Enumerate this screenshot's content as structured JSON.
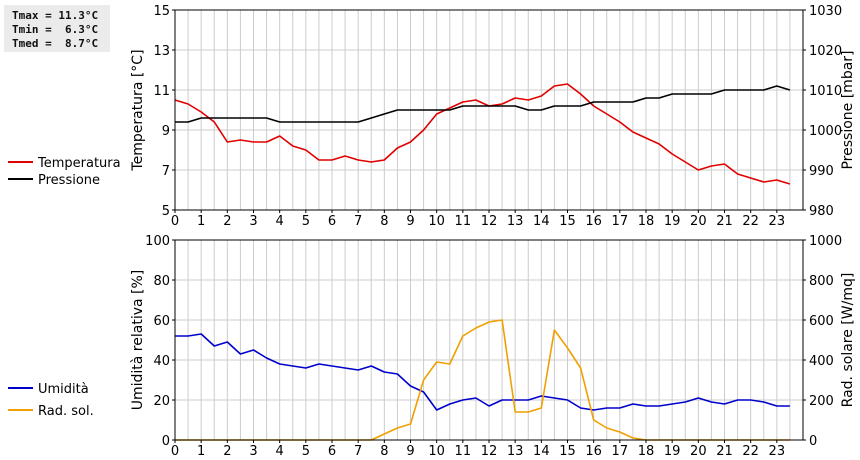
{
  "stats": {
    "tmax": "Tmax = 11.3°C",
    "tmin": "Tmin =  6.3°C",
    "tmed": "Tmed =  8.7°C"
  },
  "colors": {
    "temperature": "#e00000",
    "pressure": "#000000",
    "humidity": "#0000cc",
    "radiation": "#f0a000",
    "grid": "#cccccc"
  },
  "chart_data": [
    {
      "type": "line",
      "id": "top",
      "x_ticks": [
        "0",
        "1",
        "2",
        "3",
        "4",
        "5",
        "6",
        "7",
        "8",
        "9",
        "10",
        "11",
        "12",
        "13",
        "14",
        "15",
        "16",
        "17",
        "18",
        "19",
        "20",
        "21",
        "22",
        "23"
      ],
      "xlim": [
        0,
        24
      ],
      "ylabel_left": "Temperatura [°C]",
      "ylabel_right": "Pressione [mbar]",
      "ylim_left": [
        5,
        15
      ],
      "ylim_right": [
        980,
        1030
      ],
      "yticks_left": [
        "5",
        "7",
        "9",
        "11",
        "13",
        "15"
      ],
      "yticks_right": [
        "980",
        "990",
        "1000",
        "1010",
        "1020",
        "1030"
      ],
      "legend": [
        "Temperatura",
        "Pressione"
      ],
      "series": [
        {
          "name": "Temperatura",
          "axis": "left",
          "color_key": "temperature",
          "x": [
            0,
            0.5,
            1,
            1.5,
            2,
            2.5,
            3,
            3.5,
            4,
            4.5,
            5,
            5.5,
            6,
            6.5,
            7,
            7.5,
            8,
            8.5,
            9,
            9.5,
            10,
            10.5,
            11,
            11.5,
            12,
            12.5,
            13,
            13.5,
            14,
            14.5,
            15,
            15.5,
            16,
            16.5,
            17,
            17.5,
            18,
            18.5,
            19,
            19.5,
            20,
            20.5,
            21,
            21.5,
            22,
            22.5,
            23,
            23.5
          ],
          "values": [
            10.5,
            10.3,
            9.9,
            9.4,
            8.4,
            8.5,
            8.4,
            8.4,
            8.7,
            8.2,
            8.0,
            7.5,
            7.5,
            7.7,
            7.5,
            7.4,
            7.5,
            8.1,
            8.4,
            9.0,
            9.8,
            10.1,
            10.4,
            10.5,
            10.2,
            10.3,
            10.6,
            10.5,
            10.7,
            11.2,
            11.3,
            10.8,
            10.2,
            9.8,
            9.4,
            8.9,
            8.6,
            8.3,
            7.8,
            7.4,
            7.0,
            7.2,
            7.3,
            6.8,
            6.6,
            6.4,
            6.5,
            6.3
          ]
        },
        {
          "name": "Pressione",
          "axis": "right",
          "color_key": "pressure",
          "x": [
            0,
            0.5,
            1,
            1.5,
            2,
            2.5,
            3,
            3.5,
            4,
            4.5,
            5,
            5.5,
            6,
            6.5,
            7,
            7.5,
            8,
            8.5,
            9,
            9.5,
            10,
            10.5,
            11,
            11.5,
            12,
            12.5,
            13,
            13.5,
            14,
            14.5,
            15,
            15.5,
            16,
            16.5,
            17,
            17.5,
            18,
            18.5,
            19,
            19.5,
            20,
            20.5,
            21,
            21.5,
            22,
            22.5,
            23,
            23.5
          ],
          "values": [
            1002,
            1002,
            1003,
            1003,
            1003,
            1003,
            1003,
            1003,
            1002,
            1002,
            1002,
            1002,
            1002,
            1002,
            1002,
            1003,
            1004,
            1005,
            1005,
            1005,
            1005,
            1005,
            1006,
            1006,
            1006,
            1006,
            1006,
            1005,
            1005,
            1006,
            1006,
            1006,
            1007,
            1007,
            1007,
            1007,
            1008,
            1008,
            1009,
            1009,
            1009,
            1009,
            1010,
            1010,
            1010,
            1010,
            1011,
            1010
          ]
        }
      ]
    },
    {
      "type": "line",
      "id": "bottom",
      "x_ticks": [
        "0",
        "1",
        "2",
        "3",
        "4",
        "5",
        "6",
        "7",
        "8",
        "9",
        "10",
        "11",
        "12",
        "13",
        "14",
        "15",
        "16",
        "17",
        "18",
        "19",
        "20",
        "21",
        "22",
        "23"
      ],
      "xlim": [
        0,
        24
      ],
      "ylabel_left": "Umidità relativa [%]",
      "ylabel_right": "Rad. solare [W/mq]",
      "ylim_left": [
        0,
        100
      ],
      "ylim_right": [
        0,
        1000
      ],
      "yticks_left": [
        "0",
        "20",
        "40",
        "60",
        "80",
        "100"
      ],
      "yticks_right": [
        "0",
        "200",
        "400",
        "600",
        "800",
        "1000"
      ],
      "legend": [
        "Umidità",
        "Rad. sol."
      ],
      "series": [
        {
          "name": "Umidità",
          "axis": "left",
          "color_key": "humidity",
          "x": [
            0,
            0.5,
            1,
            1.5,
            2,
            2.5,
            3,
            3.5,
            4,
            4.5,
            5,
            5.5,
            6,
            6.5,
            7,
            7.5,
            8,
            8.5,
            9,
            9.5,
            10,
            10.5,
            11,
            11.5,
            12,
            12.5,
            13,
            13.5,
            14,
            14.5,
            15,
            15.5,
            16,
            16.5,
            17,
            17.5,
            18,
            18.5,
            19,
            19.5,
            20,
            20.5,
            21,
            21.5,
            22,
            22.5,
            23,
            23.5
          ],
          "values": [
            52,
            52,
            53,
            47,
            49,
            43,
            45,
            41,
            38,
            37,
            36,
            38,
            37,
            36,
            35,
            37,
            34,
            33,
            27,
            24,
            15,
            18,
            20,
            21,
            17,
            20,
            20,
            20,
            22,
            21,
            20,
            16,
            15,
            16,
            16,
            18,
            17,
            17,
            18,
            19,
            21,
            19,
            18,
            20,
            20,
            19,
            17,
            17
          ]
        },
        {
          "name": "Rad. sol.",
          "axis": "right",
          "color_key": "radiation",
          "x": [
            0,
            0.5,
            1,
            1.5,
            2,
            2.5,
            3,
            3.5,
            4,
            4.5,
            5,
            5.5,
            6,
            6.5,
            7,
            7.5,
            8,
            8.5,
            9,
            9.5,
            10,
            10.5,
            11,
            11.5,
            12,
            12.5,
            13,
            13.5,
            14,
            14.5,
            15,
            15.5,
            16,
            16.5,
            17,
            17.5,
            18,
            18.5,
            19,
            19.5,
            20,
            20.5,
            21,
            21.5,
            22,
            22.5,
            23,
            23.5
          ],
          "values": [
            0,
            0,
            0,
            0,
            0,
            0,
            0,
            0,
            0,
            0,
            0,
            0,
            0,
            0,
            0,
            0,
            30,
            60,
            80,
            300,
            390,
            380,
            520,
            560,
            590,
            600,
            140,
            140,
            160,
            550,
            460,
            360,
            100,
            60,
            40,
            10,
            0,
            0,
            0,
            0,
            0,
            0,
            0,
            0,
            0,
            0,
            0,
            0
          ]
        }
      ]
    }
  ]
}
